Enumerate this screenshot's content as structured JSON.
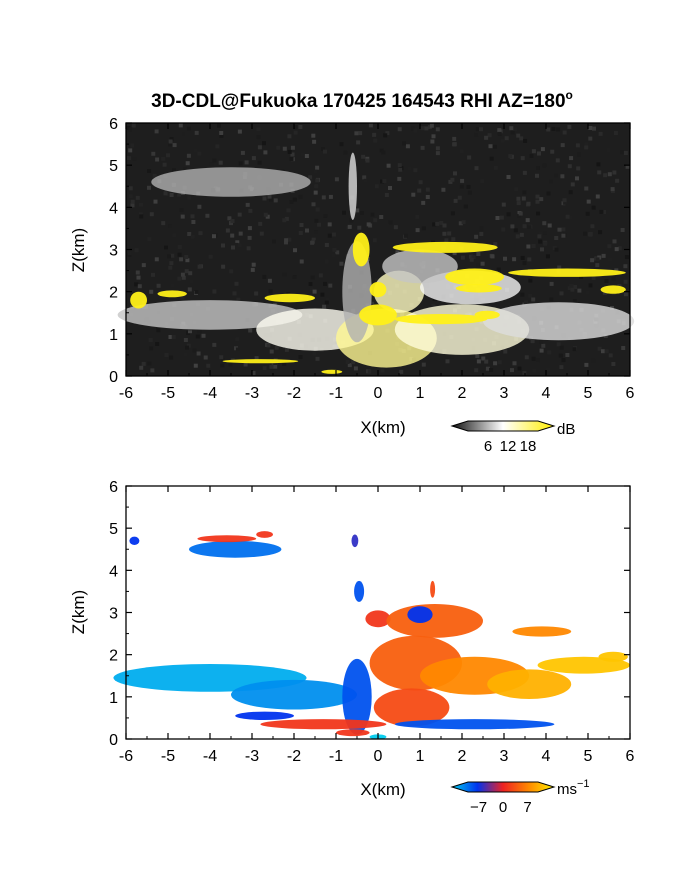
{
  "chart_data": [
    {
      "type": "heatmap",
      "title": "3D-CDL@Fukuoka 170425 164543 RHI AZ=180",
      "title_suffix": "o",
      "xlabel": "X(km)",
      "ylabel": "Z(km)",
      "xlim": [
        -6,
        6
      ],
      "ylim": [
        0,
        6
      ],
      "x_ticks": [
        "-6",
        "-5",
        "-4",
        "-3",
        "-2",
        "-1",
        "0",
        "1",
        "2",
        "3",
        "4",
        "5",
        "6"
      ],
      "y_ticks": [
        "0",
        "1",
        "2",
        "3",
        "4",
        "5",
        "6"
      ],
      "background": "#1e1e1e",
      "colorbar": {
        "unit": "dB",
        "ticks": [
          "6",
          "12",
          "18"
        ],
        "tick_values": [
          6,
          12,
          18
        ],
        "range": [
          0,
          21
        ],
        "colors": [
          "#111111",
          "#ffffff",
          "#ffee00"
        ]
      },
      "regions": [
        {
          "x": -3.5,
          "z": 4.6,
          "rx": 1.9,
          "rz": 0.35,
          "value": 7
        },
        {
          "x": -0.6,
          "z": 4.5,
          "rx": 0.1,
          "rz": 0.8,
          "value": 9
        },
        {
          "x": -4.0,
          "z": 1.45,
          "rx": 2.2,
          "rz": 0.35,
          "value": 8
        },
        {
          "x": -1.5,
          "z": 1.1,
          "rx": 1.4,
          "rz": 0.5,
          "value": 11
        },
        {
          "x": 0.2,
          "z": 0.9,
          "rx": 1.2,
          "rz": 0.7,
          "value": 15
        },
        {
          "x": 2.0,
          "z": 1.1,
          "rx": 1.6,
          "rz": 0.6,
          "value": 12
        },
        {
          "x": 4.3,
          "z": 1.3,
          "rx": 1.8,
          "rz": 0.45,
          "value": 9
        },
        {
          "x": 0.5,
          "z": 2.0,
          "rx": 0.6,
          "rz": 0.5,
          "value": 13
        },
        {
          "x": 2.2,
          "z": 2.1,
          "rx": 1.2,
          "rz": 0.4,
          "value": 10
        },
        {
          "x": 1.0,
          "z": 2.6,
          "rx": 0.9,
          "rz": 0.4,
          "value": 8
        },
        {
          "x": -0.5,
          "z": 2.0,
          "rx": 0.35,
          "rz": 1.2,
          "value": 7
        },
        {
          "x": -0.4,
          "z": 3.0,
          "rx": 0.2,
          "rz": 0.4,
          "value": 20
        },
        {
          "x": 1.6,
          "z": 3.05,
          "rx": 1.25,
          "rz": 0.13,
          "value": 20
        },
        {
          "x": 2.3,
          "z": 2.35,
          "rx": 0.7,
          "rz": 0.2,
          "value": 20
        },
        {
          "x": 2.4,
          "z": 2.08,
          "rx": 0.55,
          "rz": 0.1,
          "value": 20
        },
        {
          "x": 4.5,
          "z": 2.45,
          "rx": 1.4,
          "rz": 0.1,
          "value": 20
        },
        {
          "x": 5.6,
          "z": 2.05,
          "rx": 0.3,
          "rz": 0.1,
          "value": 20
        },
        {
          "x": -5.7,
          "z": 1.8,
          "rx": 0.2,
          "rz": 0.2,
          "value": 20
        },
        {
          "x": -4.9,
          "z": 1.95,
          "rx": 0.35,
          "rz": 0.08,
          "value": 20
        },
        {
          "x": -2.1,
          "z": 1.85,
          "rx": 0.6,
          "rz": 0.1,
          "value": 20
        },
        {
          "x": 0.0,
          "z": 1.45,
          "rx": 0.45,
          "rz": 0.25,
          "value": 20
        },
        {
          "x": 0.0,
          "z": 2.05,
          "rx": 0.2,
          "rz": 0.18,
          "value": 20
        },
        {
          "x": 1.5,
          "z": 1.35,
          "rx": 1.1,
          "rz": 0.12,
          "value": 20
        },
        {
          "x": 2.6,
          "z": 1.45,
          "rx": 0.3,
          "rz": 0.1,
          "value": 20
        },
        {
          "x": -2.8,
          "z": 0.35,
          "rx": 0.9,
          "rz": 0.05,
          "value": 20
        },
        {
          "x": -1.1,
          "z": 0.1,
          "rx": 0.25,
          "rz": 0.05,
          "value": 20
        }
      ]
    },
    {
      "type": "heatmap",
      "xlabel": "X(km)",
      "ylabel": "Z(km)",
      "xlim": [
        -6,
        6
      ],
      "ylim": [
        0,
        6
      ],
      "x_ticks": [
        "-6",
        "-5",
        "-4",
        "-3",
        "-2",
        "-1",
        "0",
        "1",
        "2",
        "3",
        "4",
        "5",
        "6"
      ],
      "y_ticks": [
        "0",
        "1",
        "2",
        "3",
        "4",
        "5",
        "6"
      ],
      "background": "#ffffff",
      "colorbar": {
        "unit": "ms",
        "unit_superscript": "−1",
        "ticks": [
          "−7",
          "0",
          "7"
        ],
        "tick_values": [
          -7,
          0,
          7
        ],
        "range": [
          -10,
          10
        ],
        "colors": [
          "#00ccee",
          "#0033ee",
          "#ee2222",
          "#ff8800",
          "#ffee00"
        ]
      },
      "regions": [
        {
          "x": -3.4,
          "z": 4.5,
          "rx": 1.1,
          "rz": 0.2,
          "value": -7
        },
        {
          "x": -3.6,
          "z": 4.75,
          "rx": 0.7,
          "rz": 0.08,
          "value": 1
        },
        {
          "x": -2.7,
          "z": 4.85,
          "rx": 0.2,
          "rz": 0.08,
          "value": 1
        },
        {
          "x": -5.8,
          "z": 4.7,
          "rx": 0.12,
          "rz": 0.1,
          "value": -5
        },
        {
          "x": -4.0,
          "z": 1.45,
          "rx": 2.3,
          "rz": 0.33,
          "value": -9
        },
        {
          "x": -2.0,
          "z": 1.05,
          "rx": 1.5,
          "rz": 0.35,
          "value": -8
        },
        {
          "x": -0.5,
          "z": 1.0,
          "rx": 0.35,
          "rz": 0.9,
          "value": -6
        },
        {
          "x": -0.45,
          "z": 3.5,
          "rx": 0.12,
          "rz": 0.25,
          "value": -6
        },
        {
          "x": -0.55,
          "z": 4.7,
          "rx": 0.08,
          "rz": 0.15,
          "value": -4
        },
        {
          "x": 0.0,
          "z": 2.85,
          "rx": 0.3,
          "rz": 0.2,
          "value": 1
        },
        {
          "x": 1.35,
          "z": 2.8,
          "rx": 1.15,
          "rz": 0.4,
          "value": 3
        },
        {
          "x": 1.0,
          "z": 2.95,
          "rx": 0.3,
          "rz": 0.2,
          "value": -5
        },
        {
          "x": 1.3,
          "z": 3.55,
          "rx": 0.06,
          "rz": 0.2,
          "value": 2
        },
        {
          "x": 0.9,
          "z": 1.8,
          "rx": 1.1,
          "rz": 0.65,
          "value": 3
        },
        {
          "x": 2.3,
          "z": 1.5,
          "rx": 1.3,
          "rz": 0.45,
          "value": 5
        },
        {
          "x": 3.6,
          "z": 1.3,
          "rx": 1.0,
          "rz": 0.35,
          "value": 7
        },
        {
          "x": 4.9,
          "z": 1.75,
          "rx": 1.1,
          "rz": 0.2,
          "value": 8
        },
        {
          "x": 3.9,
          "z": 2.55,
          "rx": 0.7,
          "rz": 0.12,
          "value": 5
        },
        {
          "x": 5.6,
          "z": 1.95,
          "rx": 0.35,
          "rz": 0.12,
          "value": 8
        },
        {
          "x": 0.8,
          "z": 0.75,
          "rx": 0.9,
          "rz": 0.45,
          "value": 2
        },
        {
          "x": -1.3,
          "z": 0.35,
          "rx": 1.5,
          "rz": 0.12,
          "value": 1
        },
        {
          "x": 2.3,
          "z": 0.35,
          "rx": 1.9,
          "rz": 0.12,
          "value": -6
        },
        {
          "x": -2.7,
          "z": 0.55,
          "rx": 0.7,
          "rz": 0.1,
          "value": -5
        },
        {
          "x": 0.0,
          "z": 0.05,
          "rx": 0.2,
          "rz": 0.06,
          "value": -10
        },
        {
          "x": -0.6,
          "z": 0.15,
          "rx": 0.4,
          "rz": 0.08,
          "value": 1
        }
      ]
    }
  ]
}
